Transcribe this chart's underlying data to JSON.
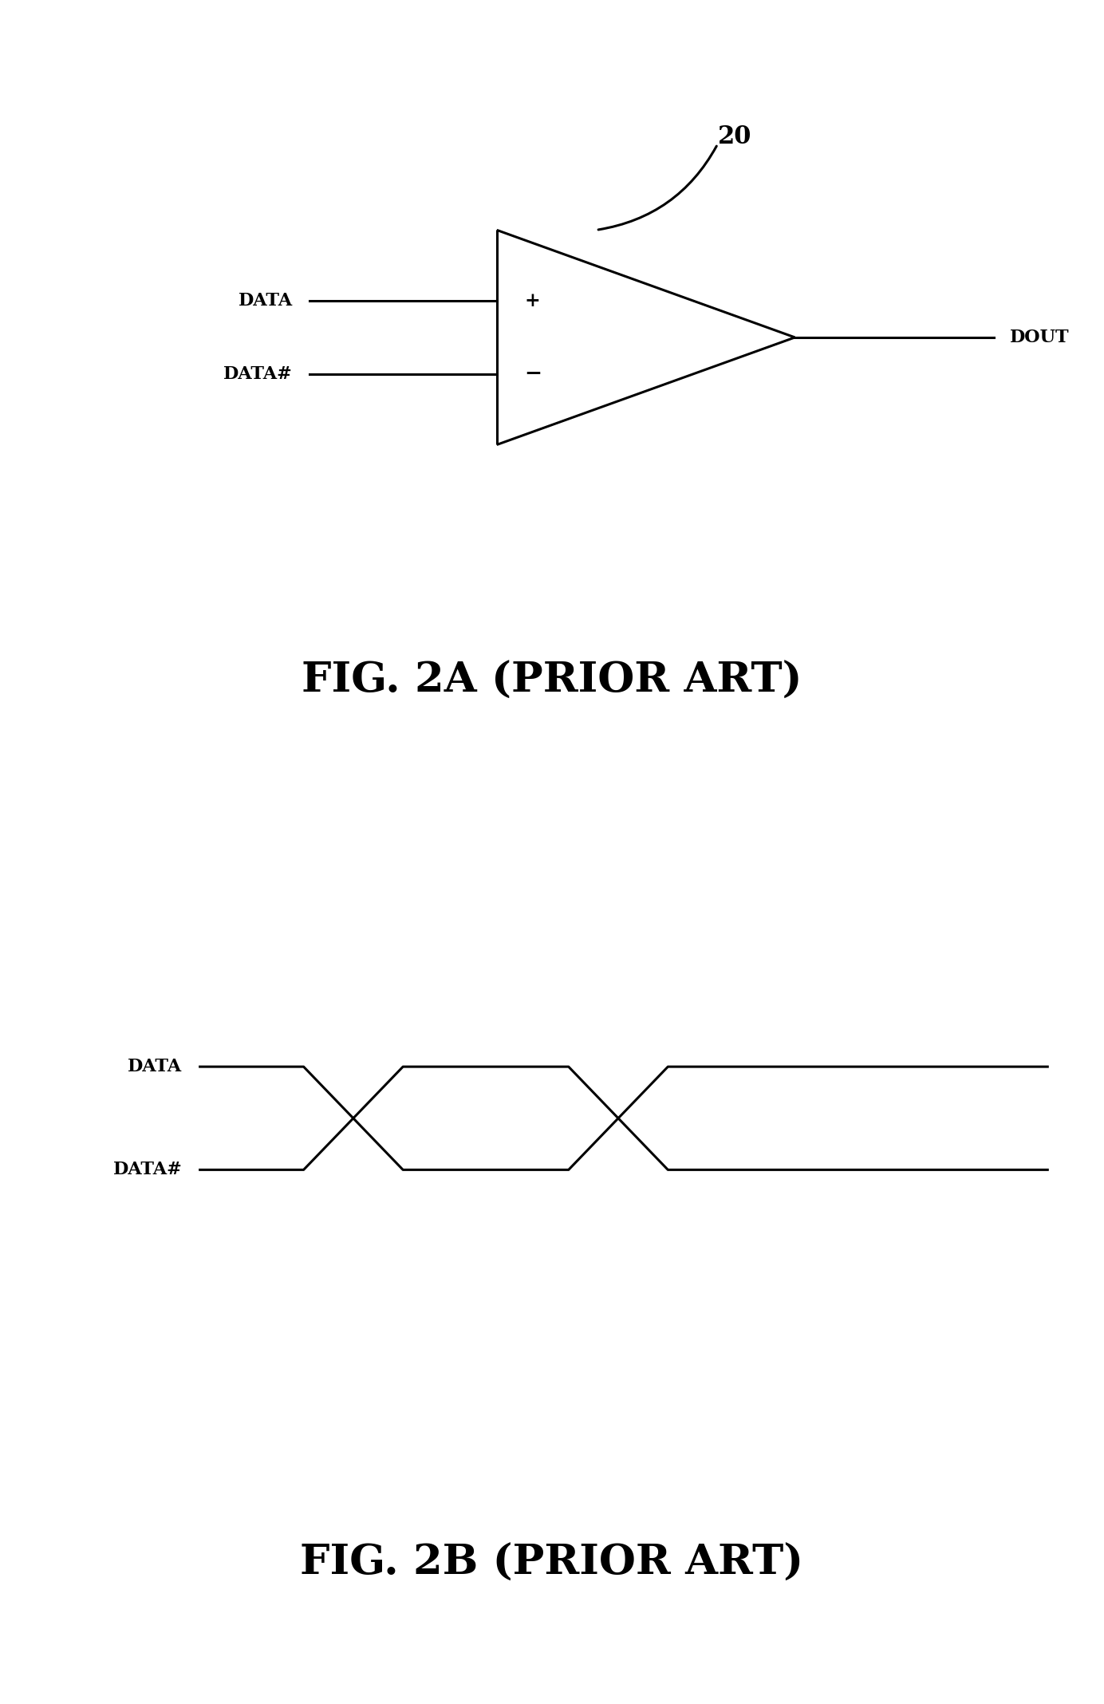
{
  "bg_color": "#ffffff",
  "line_color": "#000000",
  "fig_width": 13.84,
  "fig_height": 21.36,
  "fig2a_title": "FIG. 2A (PRIOR ART)",
  "fig2b_title": "FIG. 2B (PRIOR ART)",
  "comp_label": "20",
  "data_label": "DATA",
  "data_hash_label": "DATA#",
  "dout_label": "DOUT",
  "plus_label": "+",
  "minus_label": "−",
  "lw": 2.2,
  "comp_fontsize": 22,
  "label_fontsize": 16,
  "title_fontsize": 38
}
